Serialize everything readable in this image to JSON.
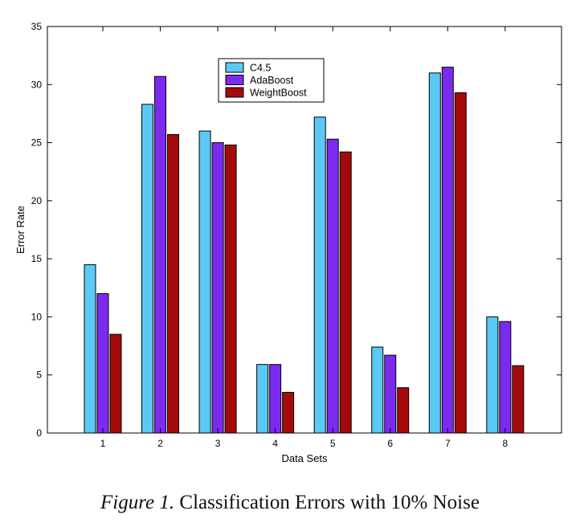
{
  "chart_data": {
    "type": "bar",
    "categories": [
      "1",
      "2",
      "3",
      "4",
      "5",
      "6",
      "7",
      "8"
    ],
    "series": [
      {
        "name": "C4.5",
        "color": "#5bc8f5",
        "values": [
          14.5,
          28.3,
          26.0,
          5.9,
          27.2,
          7.4,
          31.0,
          10.0
        ]
      },
      {
        "name": "AdaBoost",
        "color": "#7b2bf0",
        "values": [
          12.0,
          30.7,
          25.0,
          5.9,
          25.3,
          6.7,
          31.5,
          9.6
        ]
      },
      {
        "name": "WeightBoost",
        "color": "#a50a0a",
        "values": [
          8.5,
          25.7,
          24.8,
          3.5,
          24.2,
          3.9,
          29.3,
          5.8
        ]
      }
    ],
    "xlabel": "Data Sets",
    "ylabel": "Error Rate",
    "ylim": [
      0,
      35
    ],
    "yticks": [
      "0",
      "5",
      "10",
      "15",
      "20",
      "25",
      "30",
      "35"
    ],
    "legend_position": "top-center",
    "grid": false
  },
  "caption": {
    "label": "Figure 1.",
    "text": "Classification Errors with 10% Noise"
  }
}
